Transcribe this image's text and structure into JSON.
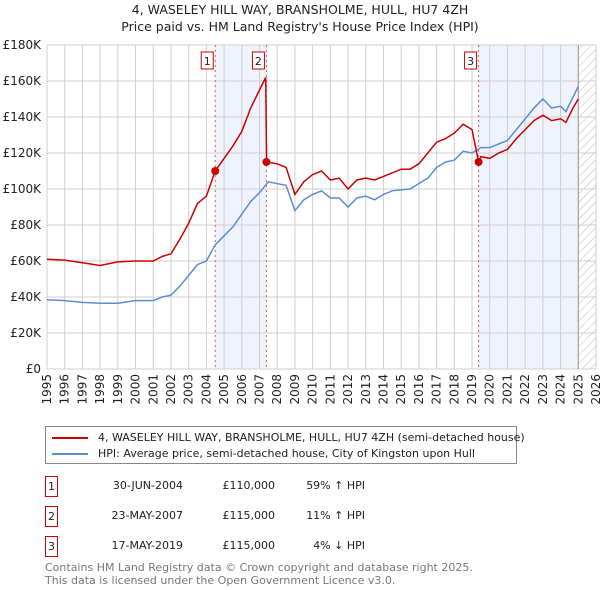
{
  "chart_data": {
    "type": "line",
    "title": "4, WASELEY HILL WAY, BRANSHOLME, HULL, HU7 4ZH",
    "subtitle": "Price paid vs. HM Land Registry's House Price Index (HPI)",
    "xlim": [
      1995,
      2026
    ],
    "ylim": [
      0,
      180000
    ],
    "x_ticks": [
      "1995",
      "1996",
      "1997",
      "1998",
      "1999",
      "2000",
      "2001",
      "2002",
      "2003",
      "2004",
      "2005",
      "2006",
      "2007",
      "2008",
      "2009",
      "2010",
      "2011",
      "2012",
      "2013",
      "2014",
      "2015",
      "2016",
      "2017",
      "2018",
      "2019",
      "2020",
      "2021",
      "2022",
      "2023",
      "2024",
      "2025",
      "2026"
    ],
    "y_ticks": [
      {
        "v": 0,
        "label": "£0"
      },
      {
        "v": 20000,
        "label": "£20K"
      },
      {
        "v": 40000,
        "label": "£40K"
      },
      {
        "v": 60000,
        "label": "£60K"
      },
      {
        "v": 80000,
        "label": "£80K"
      },
      {
        "v": 100000,
        "label": "£100K"
      },
      {
        "v": 120000,
        "label": "£120K"
      },
      {
        "v": 140000,
        "label": "£140K"
      },
      {
        "v": 160000,
        "label": "£160K"
      },
      {
        "v": 180000,
        "label": "£180K"
      }
    ],
    "grid": true,
    "future_hatch_from": 2025,
    "shaded_ranges": [
      [
        2004.5,
        2007.39
      ],
      [
        2019.37,
        2025
      ]
    ],
    "series": [
      {
        "name": "4, WASELEY HILL WAY, BRANSHOLME, HULL, HU7 4ZH (semi-detached house)",
        "color": "#cc0000",
        "x": [
          1995,
          1996,
          1997,
          1998,
          1999,
          2000,
          2001,
          2001.5,
          2002,
          2002.5,
          2003,
          2003.5,
          2004,
          2004.5,
          2005,
          2005.5,
          2006,
          2006.5,
          2007,
          2007.35,
          2007.4,
          2008,
          2008.5,
          2009,
          2009.5,
          2010,
          2010.5,
          2011,
          2011.5,
          2012,
          2012.5,
          2013,
          2013.5,
          2014,
          2014.5,
          2015,
          2015.5,
          2016,
          2016.5,
          2017,
          2017.5,
          2018,
          2018.5,
          2019,
          2019.37,
          2019.5,
          2020,
          2020.5,
          2021,
          2021.5,
          2022,
          2022.5,
          2023,
          2023.5,
          2024,
          2024.3,
          2024.7,
          2025
        ],
        "y": [
          61000,
          60500,
          59000,
          57500,
          59500,
          60000,
          60000,
          62500,
          64000,
          72000,
          81000,
          92000,
          96000,
          110000,
          117000,
          124000,
          132000,
          145000,
          155000,
          162000,
          115000,
          114000,
          112000,
          97000,
          104000,
          108000,
          110000,
          105000,
          106000,
          100000,
          105000,
          106000,
          105000,
          107000,
          109000,
          111000,
          111000,
          114000,
          120000,
          126000,
          128000,
          131000,
          136000,
          133000,
          115000,
          118000,
          117000,
          120000,
          122000,
          128000,
          133000,
          138000,
          141000,
          138000,
          139000,
          137000,
          145000,
          150000
        ]
      },
      {
        "name": "HPI: Average price, semi-detached house, City of Kingston upon Hull",
        "color": "#5b8dd0",
        "x": [
          1995,
          1996,
          1997,
          1998,
          1999,
          2000,
          2001,
          2001.5,
          2002,
          2002.5,
          2003,
          2003.5,
          2004,
          2004.5,
          2005,
          2005.5,
          2006,
          2006.5,
          2007,
          2007.5,
          2008,
          2008.5,
          2009,
          2009.5,
          2010,
          2010.5,
          2011,
          2011.5,
          2012,
          2012.5,
          2013,
          2013.5,
          2014,
          2014.5,
          2015,
          2015.5,
          2016,
          2016.5,
          2017,
          2017.5,
          2018,
          2018.5,
          2019,
          2019.5,
          2020,
          2020.5,
          2021,
          2021.5,
          2022,
          2022.5,
          2023,
          2023.5,
          2024,
          2024.3,
          2024.7,
          2025
        ],
        "y": [
          38500,
          38000,
          37000,
          36500,
          36500,
          38000,
          38000,
          40000,
          41000,
          46000,
          52000,
          58000,
          60000,
          69000,
          74000,
          79000,
          86000,
          93000,
          98000,
          104000,
          103000,
          102000,
          88000,
          94000,
          97000,
          99000,
          95000,
          95000,
          90000,
          95000,
          96000,
          94000,
          97000,
          99000,
          99500,
          100000,
          103000,
          106000,
          112000,
          115000,
          116000,
          121000,
          120000,
          123000,
          123000,
          125000,
          127000,
          133000,
          139000,
          145000,
          150000,
          145000,
          146000,
          143000,
          151000,
          157000
        ]
      }
    ],
    "sales": [
      {
        "n": "1",
        "x": 2004.5,
        "y": 110000,
        "date": "30-JUN-2004",
        "price": "£110,000",
        "hpi": "59% ↑ HPI"
      },
      {
        "n": "2",
        "x": 2007.39,
        "y": 115000,
        "date": "23-MAY-2007",
        "price": "£115,000",
        "hpi": "11% ↑ HPI"
      },
      {
        "n": "3",
        "x": 2019.37,
        "y": 115000,
        "date": "17-MAY-2019",
        "price": "£115,000",
        "hpi": "4% ↓ HPI"
      }
    ]
  },
  "footer": [
    "Contains HM Land Registry data © Crown copyright and database right 2025.",
    "This data is licensed under the Open Government Licence v3.0."
  ]
}
